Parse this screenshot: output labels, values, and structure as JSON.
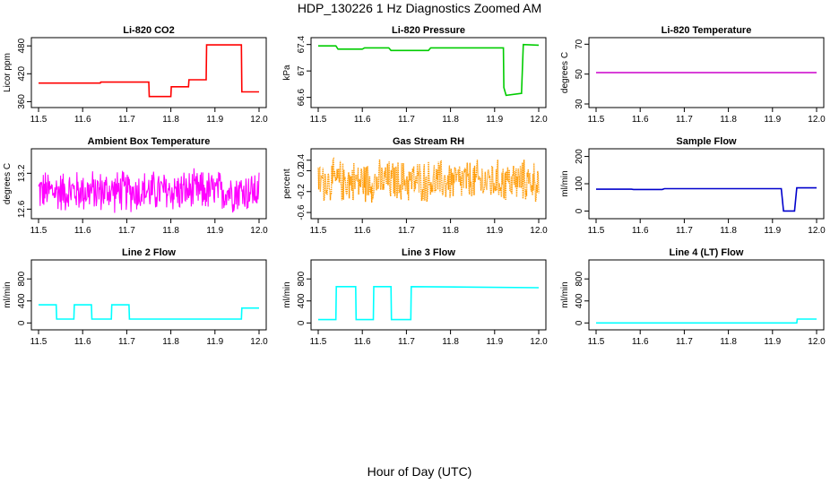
{
  "title": "HDP_130226  1 Hz Diagnostics Zoomed AM",
  "xlabel": "Hour of Day (UTC)",
  "chart_data": [
    {
      "type": "line",
      "title": "Li-820 CO2",
      "ylabel": "Licor ppm",
      "color": "#ff0000",
      "xlim": [
        11.5,
        12.0
      ],
      "ylim": [
        355,
        490
      ],
      "xticks": [
        11.5,
        11.6,
        11.7,
        11.8,
        11.9,
        12.0
      ],
      "yticks": [
        360,
        420,
        480
      ],
      "series": [
        {
          "x": [
            11.5,
            11.64,
            11.641,
            11.75,
            11.751,
            11.8,
            11.801,
            11.84,
            11.841,
            11.88,
            11.881,
            11.96,
            11.961,
            12.0
          ],
          "y": [
            400,
            400,
            402,
            402,
            371,
            371,
            392,
            392,
            407,
            407,
            482,
            482,
            381,
            381
          ]
        }
      ]
    },
    {
      "type": "line",
      "title": "Li-820 Pressure",
      "ylabel": "kPa",
      "color": "#00cc00",
      "xlim": [
        11.5,
        12.0
      ],
      "ylim": [
        66.5,
        67.45
      ],
      "xticks": [
        11.5,
        11.6,
        11.7,
        11.8,
        11.9,
        12.0
      ],
      "yticks": [
        66.6,
        67.0,
        67.4
      ],
      "series": [
        {
          "x": [
            11.5,
            11.54,
            11.545,
            11.6,
            11.605,
            11.66,
            11.665,
            11.75,
            11.755,
            11.92,
            11.921,
            11.926,
            11.96,
            11.961,
            11.965,
            12.0
          ],
          "y": [
            67.38,
            67.38,
            67.33,
            67.33,
            67.35,
            67.35,
            67.31,
            67.31,
            67.35,
            67.35,
            66.75,
            66.63,
            66.66,
            66.66,
            67.4,
            67.39
          ]
        }
      ]
    },
    {
      "type": "line",
      "title": "Li-820 Temperature",
      "ylabel": "degrees C",
      "color": "#cc00cc",
      "xlim": [
        11.5,
        12.0
      ],
      "ylim": [
        30,
        72
      ],
      "xticks": [
        11.5,
        11.6,
        11.7,
        11.8,
        11.9,
        12.0
      ],
      "yticks": [
        30,
        50,
        70
      ],
      "series": [
        {
          "x": [
            11.5,
            12.0
          ],
          "y": [
            51,
            51
          ]
        }
      ]
    },
    {
      "type": "line",
      "title": "Ambient Box Temperature",
      "ylabel": "degrees C",
      "color": "#ff00ff",
      "noise": true,
      "xlim": [
        11.5,
        12.0
      ],
      "ylim": [
        12.5,
        13.55
      ],
      "xticks": [
        11.5,
        11.6,
        11.7,
        11.8,
        11.9,
        12.0
      ],
      "yticks": [
        12.6,
        13.2
      ],
      "series": [
        {
          "x": [
            11.5,
            12.0
          ],
          "y": [
            12.9,
            12.9
          ]
        }
      ]
    },
    {
      "type": "scatter",
      "title": "Gas Stream RH",
      "ylabel": "percent",
      "color": "#ff9900",
      "noise": true,
      "xlim": [
        11.5,
        12.0
      ],
      "ylim": [
        -0.65,
        0.55
      ],
      "xticks": [
        11.5,
        11.6,
        11.7,
        11.8,
        11.9,
        12.0
      ],
      "yticks": [
        -0.6,
        -0.2,
        0.2,
        0.4
      ],
      "series": [
        {
          "x": [
            11.5,
            12.0
          ],
          "y": [
            0.0,
            0.0
          ]
        }
      ]
    },
    {
      "type": "line",
      "title": "Sample Flow",
      "ylabel": "ml/min",
      "color": "#0000cc",
      "xlim": [
        11.5,
        12.0
      ],
      "ylim": [
        -15,
        215
      ],
      "xticks": [
        11.5,
        11.6,
        11.7,
        11.8,
        11.9,
        12.0
      ],
      "yticks": [
        0,
        100,
        200
      ],
      "series": [
        {
          "x": [
            11.5,
            11.58,
            11.585,
            11.65,
            11.655,
            11.92,
            11.925,
            11.95,
            11.955,
            12.0
          ],
          "y": [
            80,
            80,
            79,
            79,
            82,
            82,
            0,
            0,
            85,
            85
          ]
        }
      ]
    },
    {
      "type": "line",
      "title": "Line 2 Flow",
      "ylabel": "ml/min",
      "color": "#00ffff",
      "xlim": [
        11.5,
        12.0
      ],
      "ylim": [
        -60,
        1080
      ],
      "xticks": [
        11.5,
        11.6,
        11.7,
        11.8,
        11.9,
        12.0
      ],
      "yticks": [
        0,
        400,
        800
      ],
      "series": [
        {
          "x": [
            11.5,
            11.54,
            11.541,
            11.58,
            11.581,
            11.62,
            11.621,
            11.665,
            11.666,
            11.705,
            11.706,
            11.96,
            11.961,
            12.0
          ],
          "y": [
            330,
            330,
            70,
            70,
            330,
            330,
            70,
            70,
            330,
            330,
            70,
            70,
            270,
            270
          ]
        }
      ]
    },
    {
      "type": "line",
      "title": "Line 3 Flow",
      "ylabel": "ml/min",
      "color": "#00ffff",
      "xlim": [
        11.5,
        12.0
      ],
      "ylim": [
        -60,
        1080
      ],
      "xticks": [
        11.5,
        11.6,
        11.7,
        11.8,
        11.9,
        12.0
      ],
      "yticks": [
        0,
        400,
        800
      ],
      "series": [
        {
          "x": [
            11.5,
            11.54,
            11.541,
            11.585,
            11.586,
            11.625,
            11.626,
            11.665,
            11.666,
            11.71,
            11.711,
            12.0
          ],
          "y": [
            60,
            60,
            660,
            660,
            60,
            60,
            660,
            660,
            60,
            60,
            660,
            640
          ]
        }
      ]
    },
    {
      "type": "line",
      "title": "Line 4 (LT) Flow",
      "ylabel": "ml/min",
      "color": "#00ffff",
      "xlim": [
        11.5,
        12.0
      ],
      "ylim": [
        -60,
        1080
      ],
      "xticks": [
        11.5,
        11.6,
        11.7,
        11.8,
        11.9,
        12.0
      ],
      "yticks": [
        0,
        400,
        800
      ],
      "series": [
        {
          "x": [
            11.5,
            11.955,
            11.956,
            12.0
          ],
          "y": [
            0,
            0,
            70,
            70
          ]
        }
      ]
    }
  ]
}
